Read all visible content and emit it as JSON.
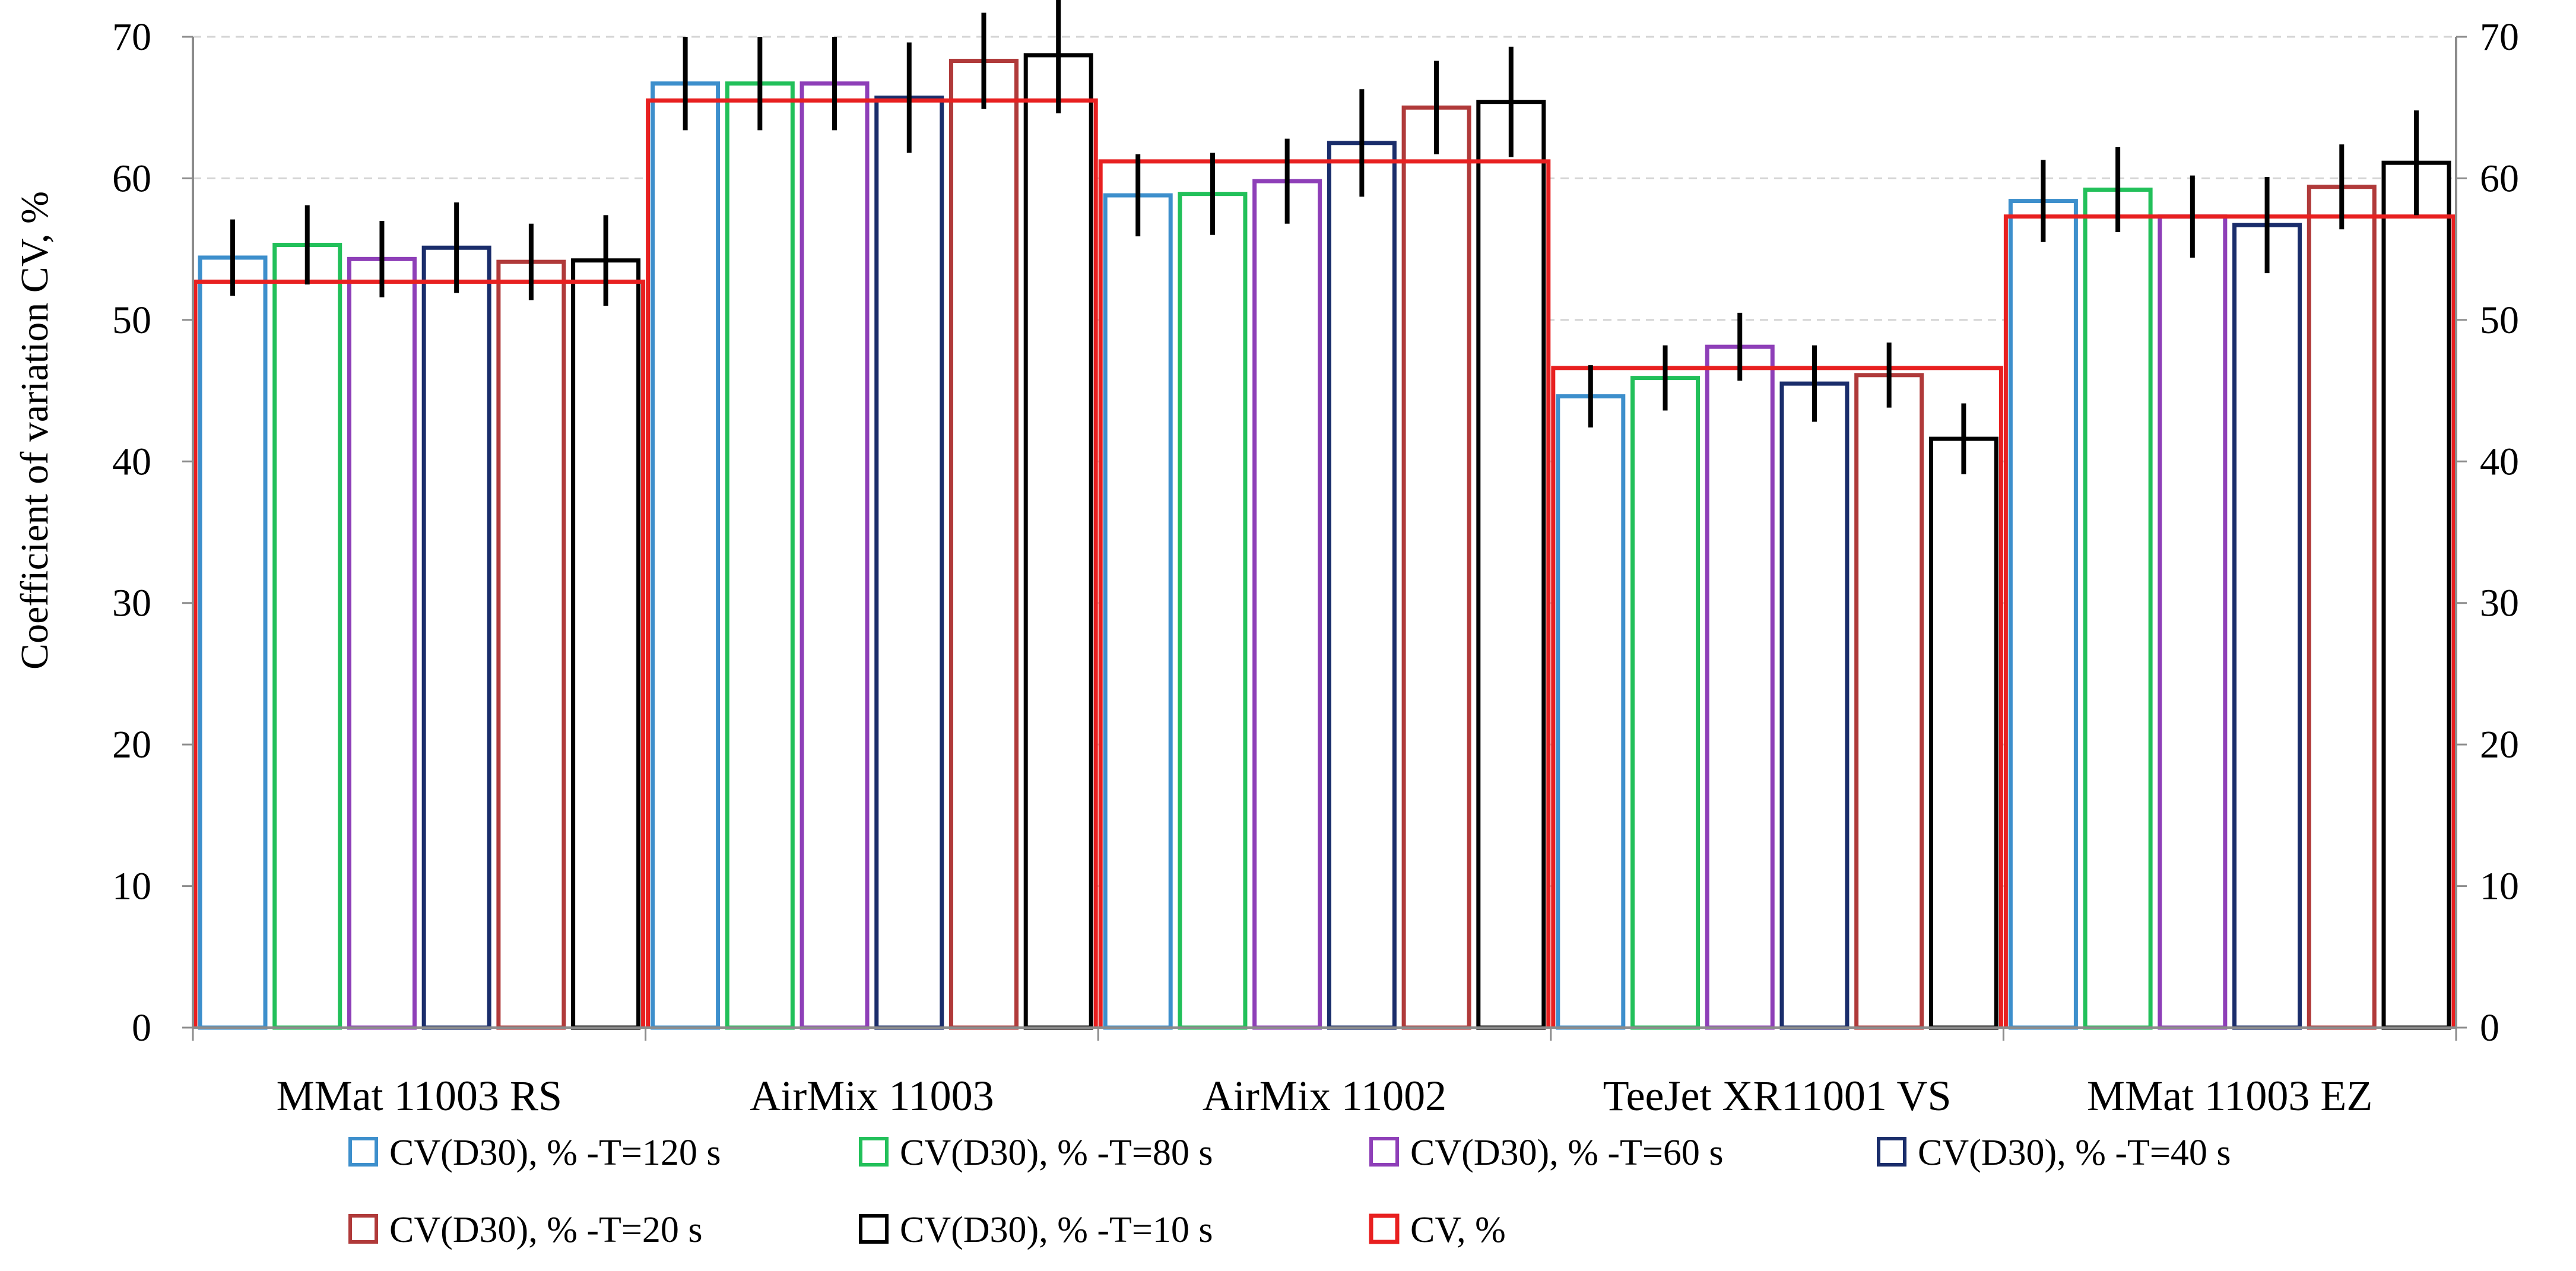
{
  "chart_data": {
    "type": "bar",
    "title": "",
    "xlabel": "",
    "ylabel": "Coefficient of variation CV, %",
    "ylim": [
      0,
      70
    ],
    "yticks": [
      0,
      10,
      20,
      30,
      40,
      50,
      60,
      70
    ],
    "ytick_labels": [
      "0",
      "10",
      "20",
      "30",
      "40",
      "50",
      "60",
      "70"
    ],
    "grid": true,
    "legend_position": "bottom",
    "categories": [
      "MMat 11003 RS",
      "AirMix 11003",
      "AirMix 11002",
      "TeeJet XR11001 VS",
      "MMat 11003 EZ"
    ],
    "series": [
      {
        "name": "CV(D30), % -T=120 s",
        "color": "#3d8fcc",
        "values": [
          54.4,
          66.7,
          58.8,
          44.6,
          58.4
        ],
        "errors": [
          2.7,
          3.3,
          2.9,
          2.2,
          2.9
        ]
      },
      {
        "name": "CV(D30), % -T=80 s",
        "color": "#22c05a",
        "values": [
          55.3,
          66.7,
          58.9,
          45.9,
          59.2
        ],
        "errors": [
          2.8,
          3.3,
          2.9,
          2.3,
          3.0
        ]
      },
      {
        "name": "CV(D30), % -T=60 s",
        "color": "#8e3fb8",
        "values": [
          54.3,
          66.7,
          59.8,
          48.1,
          57.3
        ],
        "errors": [
          2.7,
          3.3,
          3.0,
          2.4,
          2.9
        ]
      },
      {
        "name": "CV(D30), % -T=40 s",
        "color": "#1a2d6b",
        "values": [
          55.1,
          65.7,
          62.5,
          45.5,
          56.7
        ],
        "errors": [
          3.2,
          3.9,
          3.8,
          2.7,
          3.4
        ]
      },
      {
        "name": "CV(D30), % -T=20 s",
        "color": "#b03a3a",
        "values": [
          54.1,
          68.3,
          65.0,
          46.1,
          59.4
        ],
        "errors": [
          2.7,
          3.4,
          3.3,
          2.3,
          3.0
        ]
      },
      {
        "name": "CV(D30), % -T=10 s",
        "color": "#000000",
        "values": [
          54.2,
          68.7,
          65.4,
          41.6,
          61.1
        ],
        "errors": [
          3.2,
          4.1,
          3.9,
          2.5,
          3.7
        ]
      }
    ],
    "overlay_series": {
      "name": "CV, %",
      "color": "#e82020",
      "values": [
        52.7,
        65.5,
        61.2,
        46.6,
        57.3
      ]
    },
    "secondary_y_axis": {
      "ylim": [
        0,
        70
      ],
      "tick_labels": [
        "0",
        "10",
        "20",
        "30",
        "40",
        "50",
        "60",
        "70"
      ]
    }
  }
}
